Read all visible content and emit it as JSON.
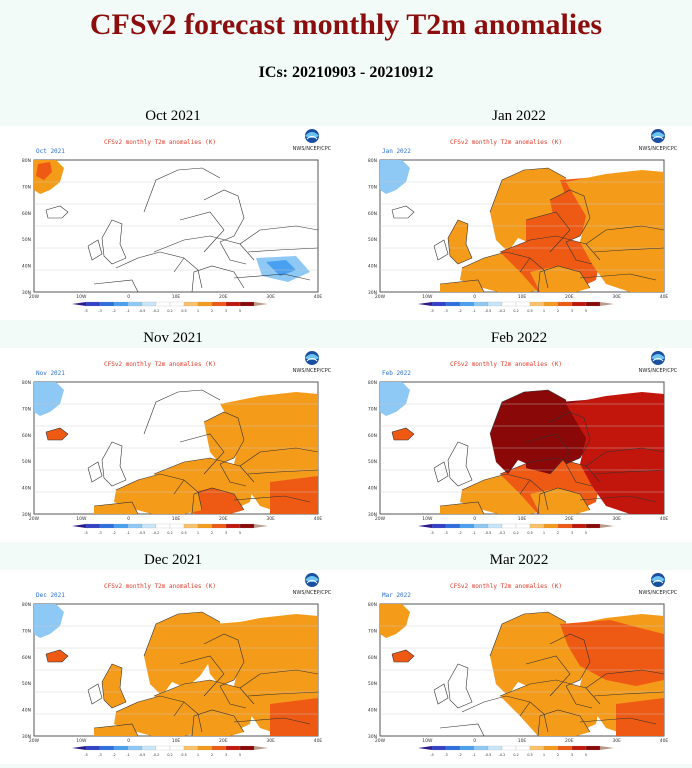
{
  "page": {
    "title": "CFSv2 forecast monthly T2m anomalies",
    "subtitle": "ICs: 20210903 - 20210912"
  },
  "map_header": {
    "title": "CFSv2 monthly T2m anomalies (K)",
    "agency": "NWS/NCEP/CPC",
    "lat_labels": [
      "80N",
      "70N",
      "60N",
      "50N",
      "40N",
      "30N"
    ],
    "lon_labels": [
      "20W",
      "10W",
      "0",
      "10E",
      "20E",
      "30E",
      "40E"
    ],
    "colorbar_colors": [
      "#2a1a8a",
      "#3340c8",
      "#2c6ee0",
      "#4aa0f0",
      "#8ec8f5",
      "#c8e6fa",
      "#ffffff",
      "#ffffff",
      "#fbc26a",
      "#f59b1a",
      "#ee5a14",
      "#c2160c",
      "#8a0808",
      "#b89a8a"
    ],
    "colorbar_labels": [
      "-5",
      "-3",
      "-2",
      "-1",
      "-0.5",
      "-0.2",
      "0.2",
      "0.5",
      "1",
      "2",
      "3",
      "5"
    ]
  },
  "panels": [
    {
      "label": "Oct 2021",
      "inner": "Oct 2021",
      "pattern": "oct"
    },
    {
      "label": "Jan 2022",
      "inner": "Jan 2022",
      "pattern": "jan"
    },
    {
      "label": "Nov 2021",
      "inner": "Nov 2021",
      "pattern": "nov"
    },
    {
      "label": "Feb 2022",
      "inner": "Feb 2022",
      "pattern": "feb"
    },
    {
      "label": "Dec 2021",
      "inner": "Dec 2021",
      "pattern": "dec"
    },
    {
      "label": "Mar 2022",
      "inner": "Mar 2022",
      "pattern": "mar"
    }
  ],
  "colors": {
    "warm1": "#f59b1a",
    "warm2": "#ee5a14",
    "warm3": "#c2160c",
    "warm4": "#8a0808",
    "cold1": "#8ec8f5",
    "cold2": "#4aa0f0"
  }
}
